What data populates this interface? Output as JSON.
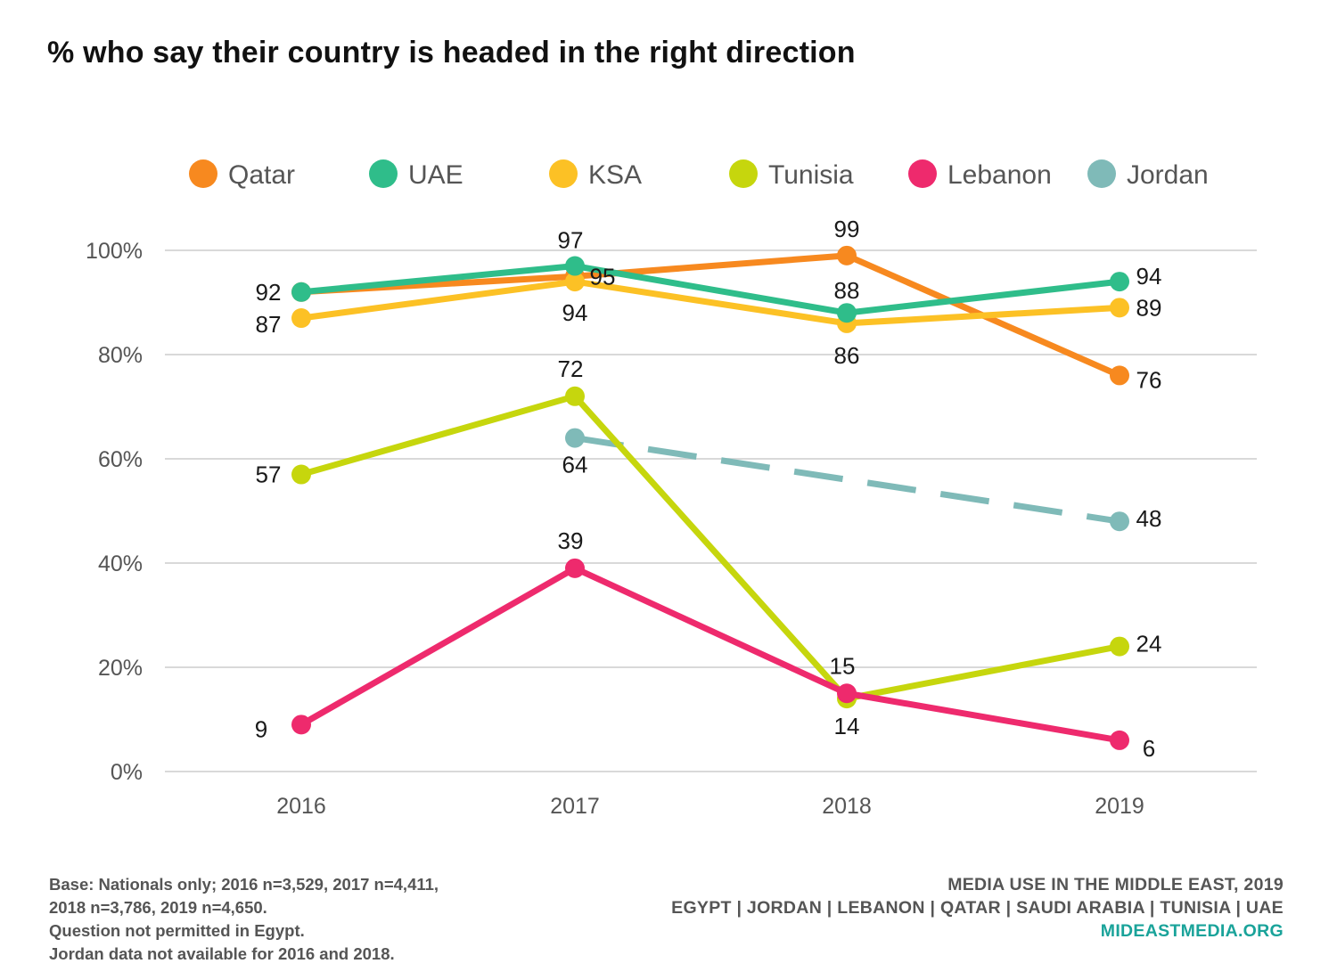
{
  "title": "% who say their country is headed in the right direction",
  "colors": {
    "Qatar": "#f7891f",
    "UAE": "#2fbd8a",
    "KSA": "#fcc125",
    "Tunisia": "#c6d60d",
    "Lebanon": "#ee2a6d",
    "Jordan": "#7fbab8"
  },
  "chart_data": {
    "type": "line",
    "title": "% who say their country is headed in the right direction",
    "xlabel": "",
    "ylabel": "",
    "x": [
      "2016",
      "2017",
      "2018",
      "2019"
    ],
    "ylim": [
      0,
      100
    ],
    "y_ticks": [
      0,
      20,
      40,
      60,
      80,
      100
    ],
    "y_tick_labels": [
      "0%",
      "20%",
      "40%",
      "60%",
      "80%",
      "100%"
    ],
    "grid": true,
    "legend_position": "top",
    "series": [
      {
        "name": "Qatar",
        "values": [
          92,
          95,
          99,
          76
        ],
        "labels": [
          "92",
          "95",
          "99",
          "76"
        ],
        "color": "#f7891f"
      },
      {
        "name": "KSA",
        "values": [
          87,
          94,
          86,
          89
        ],
        "labels": [
          "87",
          "94",
          "86",
          "89"
        ],
        "color": "#fcc125"
      },
      {
        "name": "UAE",
        "values": [
          92,
          97,
          88,
          94
        ],
        "labels": [
          "",
          "97",
          "88",
          "94"
        ],
        "color": "#2fbd8a"
      },
      {
        "name": "Jordan",
        "values": [
          null,
          64,
          null,
          48
        ],
        "labels": [
          "",
          "64",
          "",
          "48"
        ],
        "color": "#7fbab8",
        "dashed": true
      },
      {
        "name": "Tunisia",
        "values": [
          57,
          72,
          14,
          24
        ],
        "labels": [
          "57",
          "72",
          "14",
          "24"
        ],
        "color": "#c6d60d"
      },
      {
        "name": "Lebanon",
        "values": [
          9,
          39,
          15,
          6
        ],
        "labels": [
          "9",
          "39",
          "15",
          "6"
        ],
        "color": "#ee2a6d"
      }
    ],
    "legend_order": [
      "Qatar",
      "UAE",
      "KSA",
      "Tunisia",
      "Lebanon",
      "Jordan"
    ]
  },
  "footer": {
    "notes": [
      "Base: Nationals only; 2016 n=3,529, 2017 n=4,411,",
      "2018 n=3,786, 2019 n=4,650.",
      "Question not permitted in Egypt.",
      "Jordan data not available for 2016 and 2018."
    ],
    "source_title": "MEDIA USE IN THE MIDDLE EAST, 2019",
    "source_countries": "EGYPT | JORDAN | LEBANON | QATAR | SAUDI ARABIA | TUNISIA | UAE",
    "source_site": "MIDEASTMEDIA.ORG"
  }
}
